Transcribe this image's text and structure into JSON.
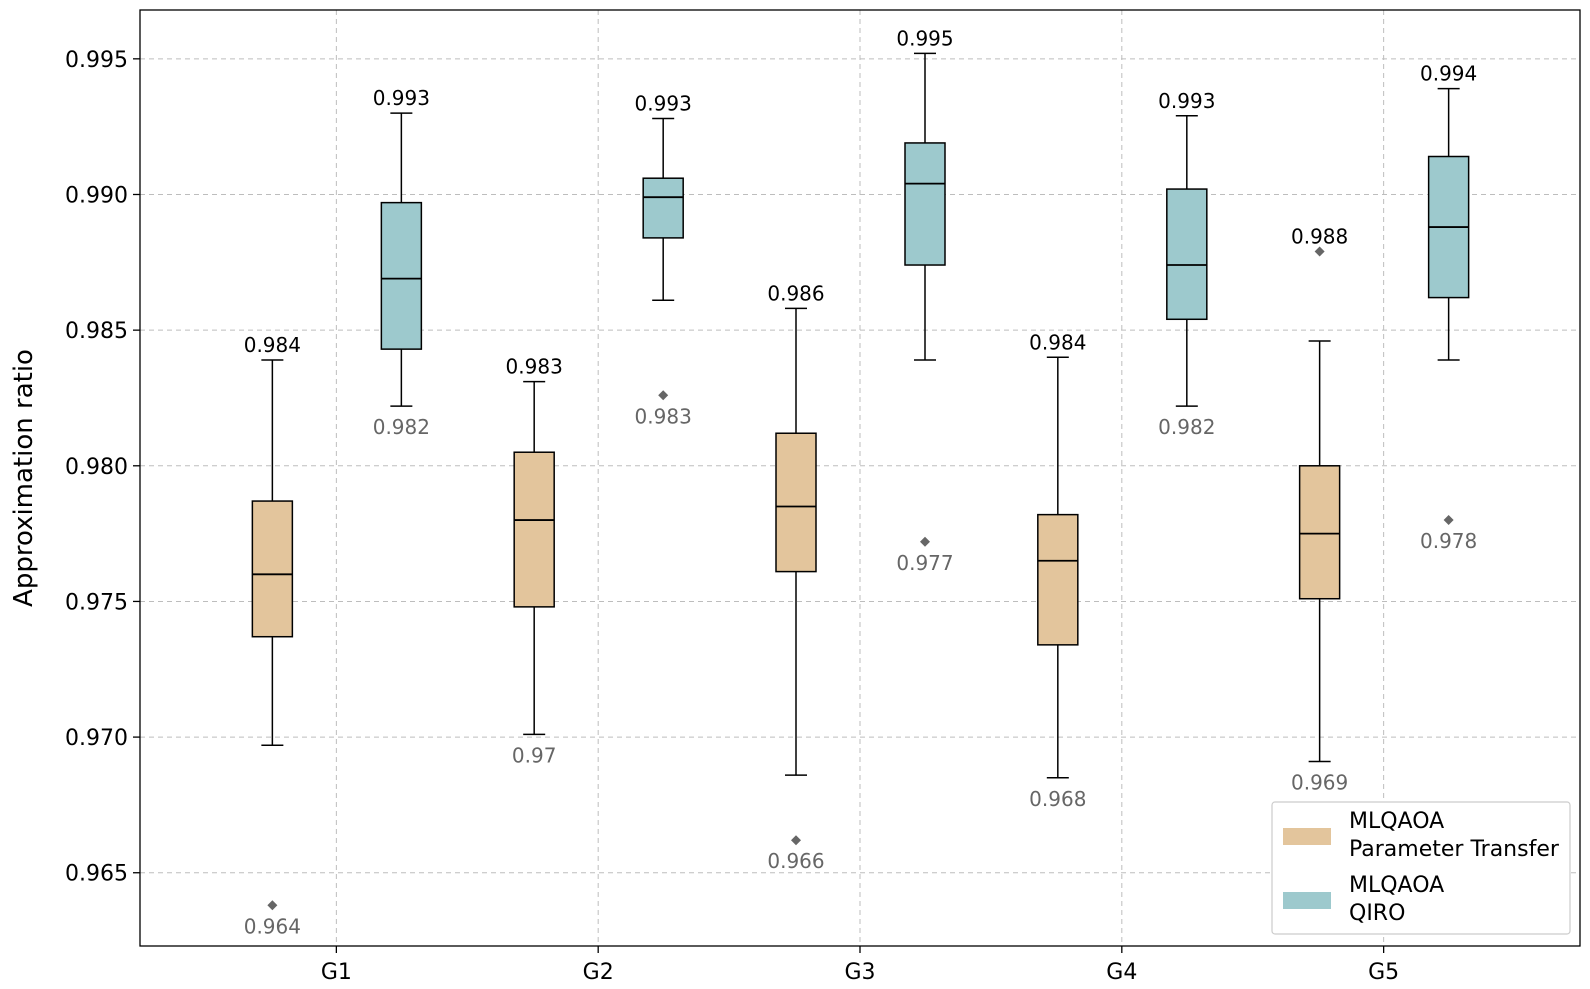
{
  "chart_data": {
    "type": "box",
    "title": "",
    "xlabel": "",
    "ylabel": "Approximation ratio",
    "ylim": [
      0.9623,
      0.9968
    ],
    "yticks": [
      0.965,
      0.97,
      0.975,
      0.98,
      0.985,
      0.99,
      0.995
    ],
    "ytick_labels": [
      "0.965",
      "0.970",
      "0.975",
      "0.980",
      "0.985",
      "0.990",
      "0.995"
    ],
    "categories": [
      "G1",
      "G2",
      "G3",
      "G4",
      "G5"
    ],
    "grid": true,
    "legend_position": "bottom-right",
    "legend": [
      {
        "line1": "MLQAOA",
        "line2": "Parameter Transfer",
        "color": "#e3c59c"
      },
      {
        "line1": "MLQAOA",
        "line2": "QIRO",
        "color": "#9dc9cd"
      }
    ],
    "series": [
      {
        "name": "MLQAOA Parameter Transfer",
        "color": "#e3c59c",
        "boxes": [
          {
            "category": "G1",
            "whisker_low": 0.9697,
            "q1": 0.9737,
            "median": 0.976,
            "q3": 0.9787,
            "whisker_high": 0.9839,
            "outliers": [
              0.9638
            ],
            "max_label": "0.984",
            "min_label": "0.964"
          },
          {
            "category": "G2",
            "whisker_low": 0.9701,
            "q1": 0.9748,
            "median": 0.978,
            "q3": 0.9805,
            "whisker_high": 0.9831,
            "outliers": [],
            "max_label": "0.983",
            "min_label": "0.97"
          },
          {
            "category": "G3",
            "whisker_low": 0.9686,
            "q1": 0.9761,
            "median": 0.9785,
            "q3": 0.9812,
            "whisker_high": 0.9858,
            "outliers": [
              0.9662
            ],
            "max_label": "0.986",
            "min_label": "0.966"
          },
          {
            "category": "G4",
            "whisker_low": 0.9685,
            "q1": 0.9734,
            "median": 0.9765,
            "q3": 0.9782,
            "whisker_high": 0.984,
            "outliers": [],
            "max_label": "0.984",
            "min_label": "0.968"
          },
          {
            "category": "G5",
            "whisker_low": 0.9691,
            "q1": 0.9751,
            "median": 0.9775,
            "q3": 0.98,
            "whisker_high": 0.9846,
            "outliers": [
              0.9879
            ],
            "max_label": "0.988",
            "min_label": "0.969"
          }
        ]
      },
      {
        "name": "MLQAOA QIRO",
        "color": "#9dc9cd",
        "boxes": [
          {
            "category": "G1",
            "whisker_low": 0.9822,
            "q1": 0.9843,
            "median": 0.9869,
            "q3": 0.9897,
            "whisker_high": 0.993,
            "outliers": [],
            "max_label": "0.993",
            "min_label": "0.982"
          },
          {
            "category": "G2",
            "whisker_low": 0.9861,
            "q1": 0.9884,
            "median": 0.9899,
            "q3": 0.9906,
            "whisker_high": 0.9928,
            "outliers": [
              0.9826
            ],
            "max_label": "0.993",
            "min_label": "0.983"
          },
          {
            "category": "G3",
            "whisker_low": 0.9839,
            "q1": 0.9874,
            "median": 0.9904,
            "q3": 0.9919,
            "whisker_high": 0.9952,
            "outliers": [
              0.9772
            ],
            "max_label": "0.995",
            "min_label": "0.977"
          },
          {
            "category": "G4",
            "whisker_low": 0.9822,
            "q1": 0.9854,
            "median": 0.9874,
            "q3": 0.9902,
            "whisker_high": 0.9929,
            "outliers": [],
            "max_label": "0.993",
            "min_label": "0.982"
          },
          {
            "category": "G5",
            "whisker_low": 0.9839,
            "q1": 0.9862,
            "median": 0.9888,
            "q3": 0.9914,
            "whisker_high": 0.9939,
            "outliers": [
              0.978
            ],
            "max_label": "0.994",
            "min_label": "0.978"
          }
        ]
      }
    ]
  }
}
